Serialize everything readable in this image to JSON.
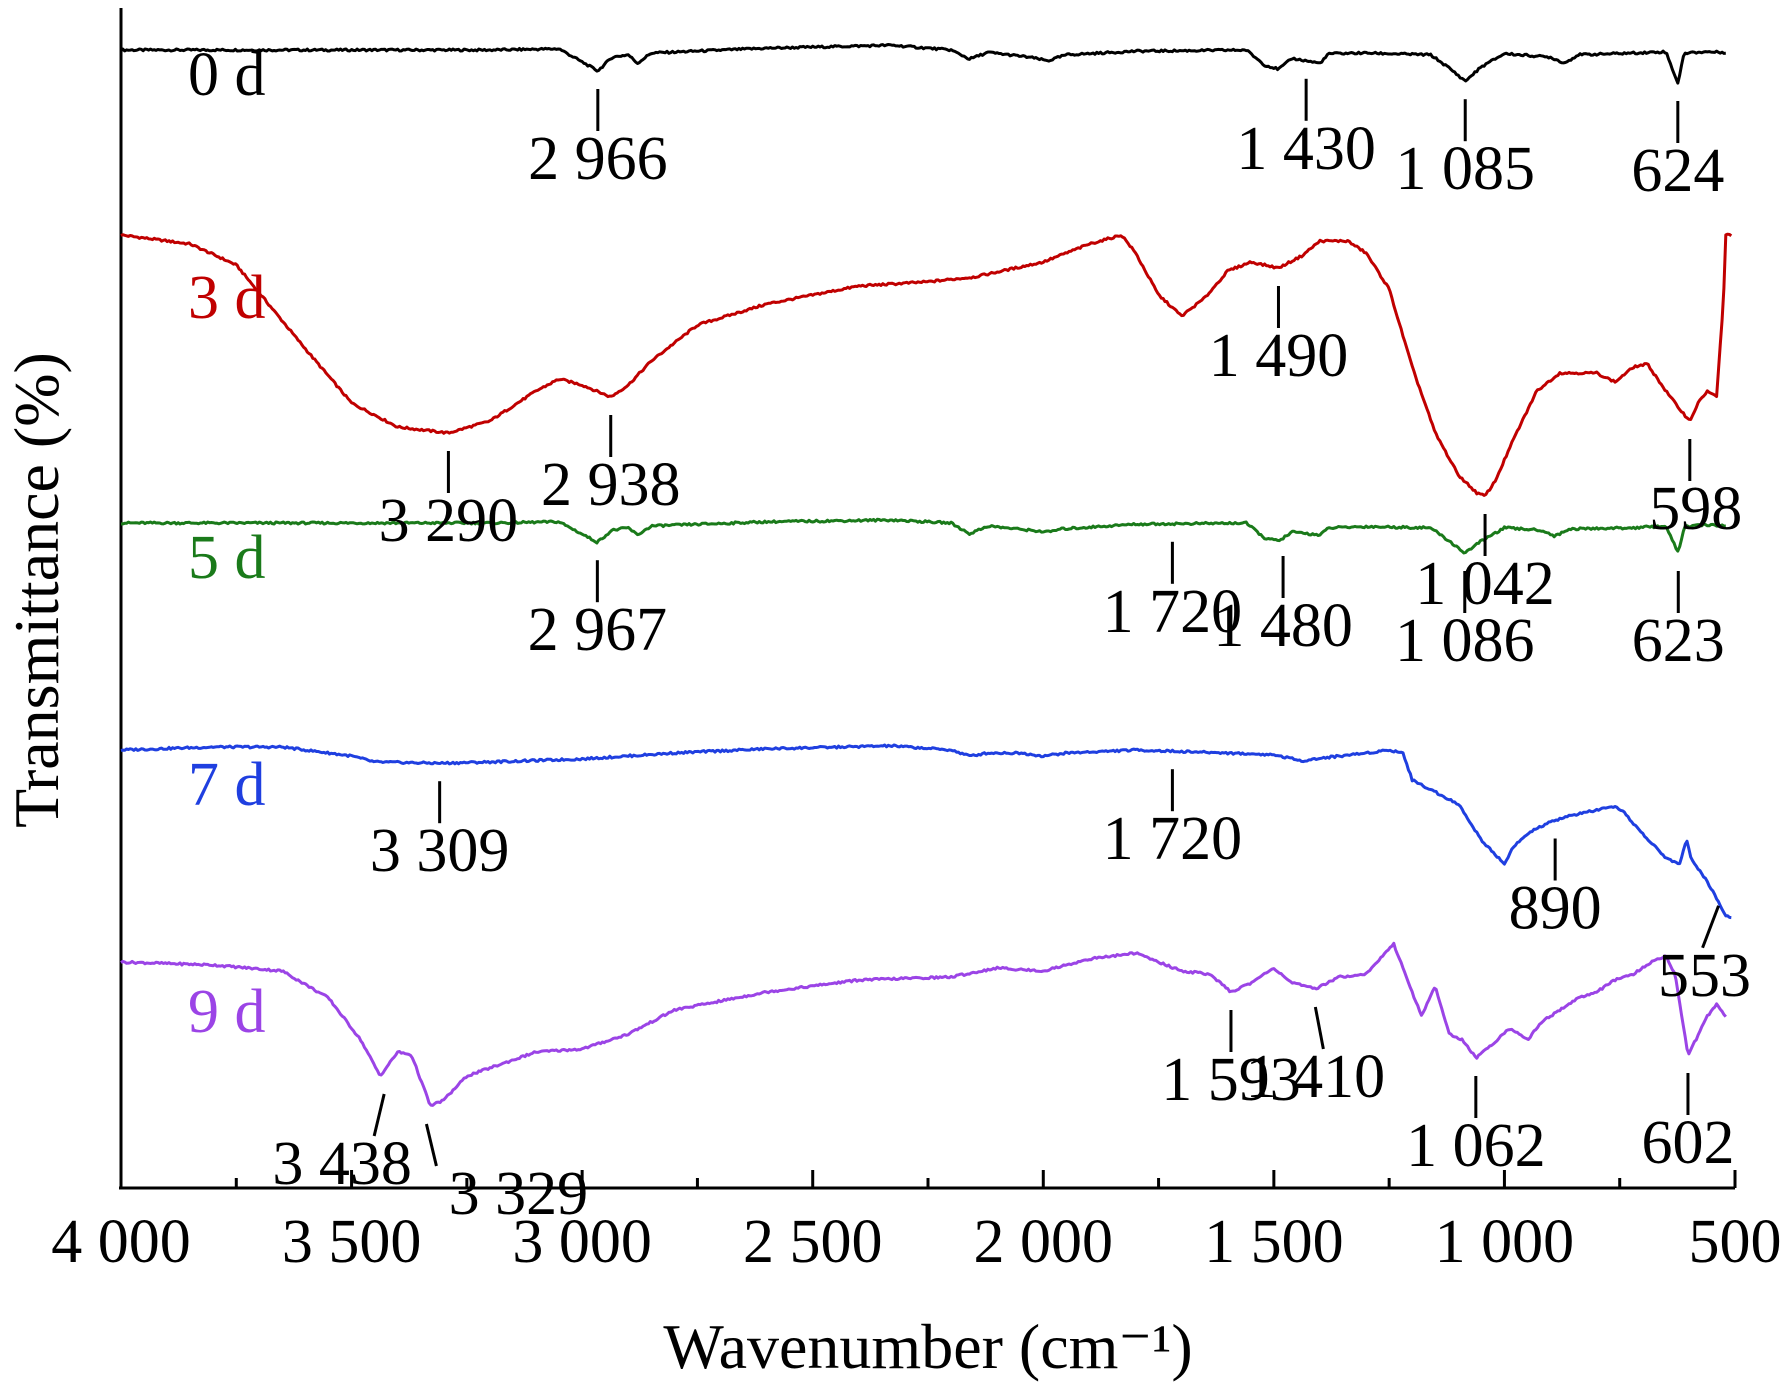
{
  "chart_data": {
    "type": "line",
    "xlabel": "Wavenumber (cm⁻¹)",
    "ylabel": "Transmittance (%)",
    "xlim": [
      4000,
      500
    ],
    "x_reversed": true,
    "x_ticks": [
      4000,
      3500,
      3000,
      2500,
      2000,
      1500,
      1000,
      500
    ],
    "x_tick_labels": [
      "4 000",
      "3 500",
      "3 000",
      "2 500",
      "2 000",
      "1 500",
      "1 000",
      "500"
    ],
    "y_ticks_shown": false,
    "grid": false,
    "legend": "inline labels at left of each curve",
    "series": [
      {
        "name": "0 d",
        "color": "#000000",
        "points": [
          [
            4000,
            0
          ],
          [
            3600,
            0
          ],
          [
            3200,
            0
          ],
          [
            3050,
            0.02
          ],
          [
            2966,
            -0.35
          ],
          [
            2935,
            -0.12
          ],
          [
            2900,
            -0.08
          ],
          [
            2880,
            -0.22
          ],
          [
            2850,
            -0.05
          ],
          [
            2600,
            0.03
          ],
          [
            2330,
            0.08
          ],
          [
            2200,
            0
          ],
          [
            2160,
            -0.15
          ],
          [
            2120,
            -0.04
          ],
          [
            2030,
            -0.12
          ],
          [
            1990,
            -0.18
          ],
          [
            1950,
            -0.08
          ],
          [
            1800,
            -0.02
          ],
          [
            1560,
            0
          ],
          [
            1520,
            -0.25
          ],
          [
            1490,
            -0.32
          ],
          [
            1460,
            -0.14
          ],
          [
            1400,
            -0.22
          ],
          [
            1380,
            -0.06
          ],
          [
            1300,
            -0.05
          ],
          [
            1160,
            -0.08
          ],
          [
            1120,
            -0.3
          ],
          [
            1085,
            -0.52
          ],
          [
            1050,
            -0.28
          ],
          [
            1000,
            -0.06
          ],
          [
            900,
            -0.12
          ],
          [
            870,
            -0.22
          ],
          [
            840,
            -0.08
          ],
          [
            720,
            -0.05
          ],
          [
            650,
            -0.03
          ],
          [
            624,
            -0.55
          ],
          [
            610,
            -0.05
          ],
          [
            560,
            -0.03
          ],
          [
            520,
            -0.04
          ]
        ]
      },
      {
        "name": "3 d",
        "color": "#c00000",
        "points": [
          [
            4000,
            0
          ],
          [
            3850,
            -0.15
          ],
          [
            3750,
            -0.5
          ],
          [
            3600,
            -1.9
          ],
          [
            3500,
            -2.8
          ],
          [
            3400,
            -3.2
          ],
          [
            3290,
            -3.3
          ],
          [
            3200,
            -3.1
          ],
          [
            3100,
            -2.6
          ],
          [
            3050,
            -2.4
          ],
          [
            3000,
            -2.5
          ],
          [
            2938,
            -2.7
          ],
          [
            2900,
            -2.5
          ],
          [
            2850,
            -2.1
          ],
          [
            2750,
            -1.5
          ],
          [
            2600,
            -1.15
          ],
          [
            2400,
            -0.85
          ],
          [
            2250,
            -0.78
          ],
          [
            2150,
            -0.7
          ],
          [
            2000,
            -0.45
          ],
          [
            1900,
            -0.15
          ],
          [
            1830,
            0
          ],
          [
            1800,
            -0.3
          ],
          [
            1750,
            -1.0
          ],
          [
            1700,
            -1.35
          ],
          [
            1650,
            -1.05
          ],
          [
            1600,
            -0.6
          ],
          [
            1550,
            -0.45
          ],
          [
            1490,
            -0.55
          ],
          [
            1440,
            -0.35
          ],
          [
            1400,
            -0.1
          ],
          [
            1340,
            -0.1
          ],
          [
            1300,
            -0.3
          ],
          [
            1250,
            -0.9
          ],
          [
            1200,
            -2.2
          ],
          [
            1150,
            -3.3
          ],
          [
            1100,
            -4.0
          ],
          [
            1060,
            -4.3
          ],
          [
            1042,
            -4.35
          ],
          [
            1020,
            -4.1
          ],
          [
            980,
            -3.4
          ],
          [
            930,
            -2.6
          ],
          [
            880,
            -2.3
          ],
          [
            800,
            -2.3
          ],
          [
            760,
            -2.45
          ],
          [
            720,
            -2.2
          ],
          [
            690,
            -2.15
          ],
          [
            650,
            -2.6
          ],
          [
            620,
            -2.9
          ],
          [
            598,
            -3.1
          ],
          [
            580,
            -2.8
          ],
          [
            560,
            -2.6
          ],
          [
            540,
            -2.7
          ],
          [
            525,
            -1.1
          ],
          [
            520,
            0
          ],
          [
            505,
            0
          ]
        ]
      },
      {
        "name": "5 d",
        "color": "#1a7a1a",
        "points": [
          [
            4000,
            0
          ],
          [
            3600,
            0
          ],
          [
            3200,
            0
          ],
          [
            3050,
            0.02
          ],
          [
            2967,
            -0.32
          ],
          [
            2935,
            -0.12
          ],
          [
            2900,
            -0.08
          ],
          [
            2880,
            -0.2
          ],
          [
            2850,
            -0.05
          ],
          [
            2600,
            0.02
          ],
          [
            2330,
            0.05
          ],
          [
            2200,
            0
          ],
          [
            2160,
            -0.18
          ],
          [
            2120,
            -0.05
          ],
          [
            2030,
            -0.12
          ],
          [
            1990,
            -0.15
          ],
          [
            1960,
            -0.1
          ],
          [
            1800,
            -0.02
          ],
          [
            1560,
            0
          ],
          [
            1520,
            -0.25
          ],
          [
            1490,
            -0.3
          ],
          [
            1460,
            -0.15
          ],
          [
            1400,
            -0.2
          ],
          [
            1380,
            -0.08
          ],
          [
            1300,
            -0.06
          ],
          [
            1160,
            -0.08
          ],
          [
            1120,
            -0.3
          ],
          [
            1086,
            -0.5
          ],
          [
            1050,
            -0.3
          ],
          [
            1000,
            -0.08
          ],
          [
            920,
            -0.12
          ],
          [
            890,
            -0.22
          ],
          [
            860,
            -0.1
          ],
          [
            720,
            -0.08
          ],
          [
            650,
            -0.05
          ],
          [
            623,
            -0.5
          ],
          [
            610,
            -0.06
          ],
          [
            560,
            -0.03
          ],
          [
            520,
            -0.05
          ]
        ]
      },
      {
        "name": "7 d",
        "color": "#1f3fe0",
        "points": [
          [
            4000,
            0
          ],
          [
            3800,
            0.05
          ],
          [
            3650,
            0.05
          ],
          [
            3500,
            -0.1
          ],
          [
            3450,
            -0.2
          ],
          [
            3309,
            -0.22
          ],
          [
            3200,
            -0.2
          ],
          [
            3000,
            -0.15
          ],
          [
            2800,
            -0.05
          ],
          [
            2600,
            0.02
          ],
          [
            2330,
            0.07
          ],
          [
            2200,
            0
          ],
          [
            2160,
            -0.1
          ],
          [
            2120,
            -0.05
          ],
          [
            2050,
            -0.05
          ],
          [
            2000,
            -0.1
          ],
          [
            1950,
            -0.05
          ],
          [
            1800,
            0
          ],
          [
            1600,
            -0.05
          ],
          [
            1500,
            -0.08
          ],
          [
            1440,
            -0.18
          ],
          [
            1380,
            -0.12
          ],
          [
            1300,
            -0.05
          ],
          [
            1250,
            0
          ],
          [
            1220,
            -0.05
          ],
          [
            1200,
            -0.5
          ],
          [
            1150,
            -0.7
          ],
          [
            1100,
            -0.9
          ],
          [
            1050,
            -1.5
          ],
          [
            1000,
            -1.9
          ],
          [
            980,
            -1.6
          ],
          [
            940,
            -1.35
          ],
          [
            900,
            -1.2
          ],
          [
            860,
            -1.1
          ],
          [
            800,
            -1.0
          ],
          [
            760,
            -0.95
          ],
          [
            740,
            -1.05
          ],
          [
            700,
            -1.4
          ],
          [
            650,
            -1.8
          ],
          [
            620,
            -1.9
          ],
          [
            605,
            -1.5
          ],
          [
            595,
            -1.8
          ],
          [
            560,
            -2.2
          ],
          [
            520,
            -2.75
          ],
          [
            505,
            -2.8
          ]
        ]
      },
      {
        "name": "9 d",
        "color": "#9b44e6",
        "points": [
          [
            4000,
            0
          ],
          [
            3800,
            -0.05
          ],
          [
            3650,
            -0.15
          ],
          [
            3550,
            -0.6
          ],
          [
            3480,
            -1.3
          ],
          [
            3438,
            -1.9
          ],
          [
            3400,
            -1.5
          ],
          [
            3370,
            -1.55
          ],
          [
            3329,
            -2.4
          ],
          [
            3300,
            -2.3
          ],
          [
            3250,
            -1.9
          ],
          [
            3100,
            -1.5
          ],
          [
            3000,
            -1.45
          ],
          [
            2900,
            -1.2
          ],
          [
            2800,
            -0.8
          ],
          [
            2600,
            -0.5
          ],
          [
            2400,
            -0.3
          ],
          [
            2200,
            -0.25
          ],
          [
            2100,
            -0.1
          ],
          [
            2000,
            -0.15
          ],
          [
            1900,
            0.05
          ],
          [
            1800,
            0.15
          ],
          [
            1700,
            -0.15
          ],
          [
            1640,
            -0.2
          ],
          [
            1593,
            -0.5
          ],
          [
            1550,
            -0.35
          ],
          [
            1500,
            -0.1
          ],
          [
            1460,
            -0.35
          ],
          [
            1410,
            -0.45
          ],
          [
            1360,
            -0.25
          ],
          [
            1300,
            -0.2
          ],
          [
            1240,
            0.3
          ],
          [
            1210,
            -0.3
          ],
          [
            1180,
            -0.9
          ],
          [
            1150,
            -0.4
          ],
          [
            1120,
            -1.2
          ],
          [
            1090,
            -1.3
          ],
          [
            1062,
            -1.6
          ],
          [
            1030,
            -1.4
          ],
          [
            990,
            -1.1
          ],
          [
            950,
            -1.3
          ],
          [
            920,
            -1.0
          ],
          [
            880,
            -0.8
          ],
          [
            840,
            -0.6
          ],
          [
            800,
            -0.5
          ],
          [
            760,
            -0.3
          ],
          [
            720,
            -0.2
          ],
          [
            670,
            0.05
          ],
          [
            650,
            0.1
          ],
          [
            630,
            -0.2
          ],
          [
            602,
            -1.55
          ],
          [
            585,
            -1.3
          ],
          [
            560,
            -0.9
          ],
          [
            540,
            -0.7
          ],
          [
            520,
            -0.9
          ]
        ]
      }
    ],
    "annotations": [
      {
        "series": "0 d",
        "labels": [
          {
            "x": 2966,
            "text": "2 966"
          },
          {
            "x": 1430,
            "text": "1 430"
          },
          {
            "x": 1085,
            "text": "1 085"
          },
          {
            "x": 624,
            "text": "624"
          }
        ]
      },
      {
        "series": "3 d",
        "labels": [
          {
            "x": 3290,
            "text": "3 290"
          },
          {
            "x": 2938,
            "text": "2 938"
          },
          {
            "x": 1490,
            "text": "1 490"
          },
          {
            "x": 1042,
            "text": "1 042"
          },
          {
            "x": 598,
            "text": "598"
          }
        ]
      },
      {
        "series": "5 d",
        "labels": [
          {
            "x": 2967,
            "text": "2 967"
          },
          {
            "x": 1720,
            "text": "1 720"
          },
          {
            "x": 1480,
            "text": "1 480"
          },
          {
            "x": 1086,
            "text": "1 086"
          },
          {
            "x": 623,
            "text": "623"
          }
        ]
      },
      {
        "series": "7 d",
        "labels": [
          {
            "x": 3309,
            "text": "3 309"
          },
          {
            "x": 1720,
            "text": "1 720"
          },
          {
            "x": 890,
            "text": "890"
          },
          {
            "x": 553,
            "text": "553"
          }
        ]
      },
      {
        "series": "9 d",
        "labels": [
          {
            "x": 3438,
            "text": "3 438"
          },
          {
            "x": 3329,
            "text": "3 329"
          },
          {
            "x": 1593,
            "text": "1 593"
          },
          {
            "x": 1410,
            "text": "1 410"
          },
          {
            "x": 1062,
            "text": "1 062"
          },
          {
            "x": 602,
            "text": "602"
          }
        ]
      }
    ]
  }
}
